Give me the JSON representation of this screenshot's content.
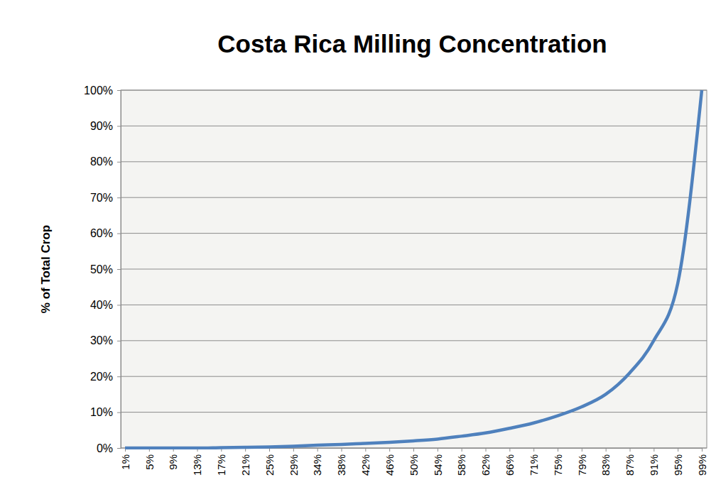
{
  "chart_data": {
    "type": "line",
    "title": "Costa Rica Milling Concentration",
    "y_label": "% of Total Crop",
    "categories": [
      "1%",
      "5%",
      "9%",
      "13%",
      "17%",
      "21%",
      "25%",
      "29%",
      "34%",
      "38%",
      "42%",
      "46%",
      "50%",
      "54%",
      "58%",
      "62%",
      "66%",
      "71%",
      "75%",
      "79%",
      "83%",
      "87%",
      "91%",
      "95%",
      "99%"
    ],
    "values": [
      0,
      0,
      0,
      0,
      0.1,
      0.2,
      0.3,
      0.5,
      0.8,
      1.0,
      1.3,
      1.6,
      2.0,
      2.5,
      3.3,
      4.2,
      5.5,
      7,
      9,
      11.5,
      15,
      21,
      30,
      46,
      100
    ],
    "color": "#4f81bd",
    "ylim": [
      0,
      100
    ],
    "yticks": [
      {
        "value": 0,
        "label": "0%"
      },
      {
        "value": 10,
        "label": "10%"
      },
      {
        "value": 20,
        "label": "20%"
      },
      {
        "value": 30,
        "label": "30%"
      },
      {
        "value": 40,
        "label": "40%"
      },
      {
        "value": 50,
        "label": "50%"
      },
      {
        "value": 60,
        "label": "60%"
      },
      {
        "value": 70,
        "label": "70%"
      },
      {
        "value": 80,
        "label": "80%"
      },
      {
        "value": 90,
        "label": "90%"
      },
      {
        "value": 100,
        "label": "100%"
      }
    ],
    "grid": true
  }
}
